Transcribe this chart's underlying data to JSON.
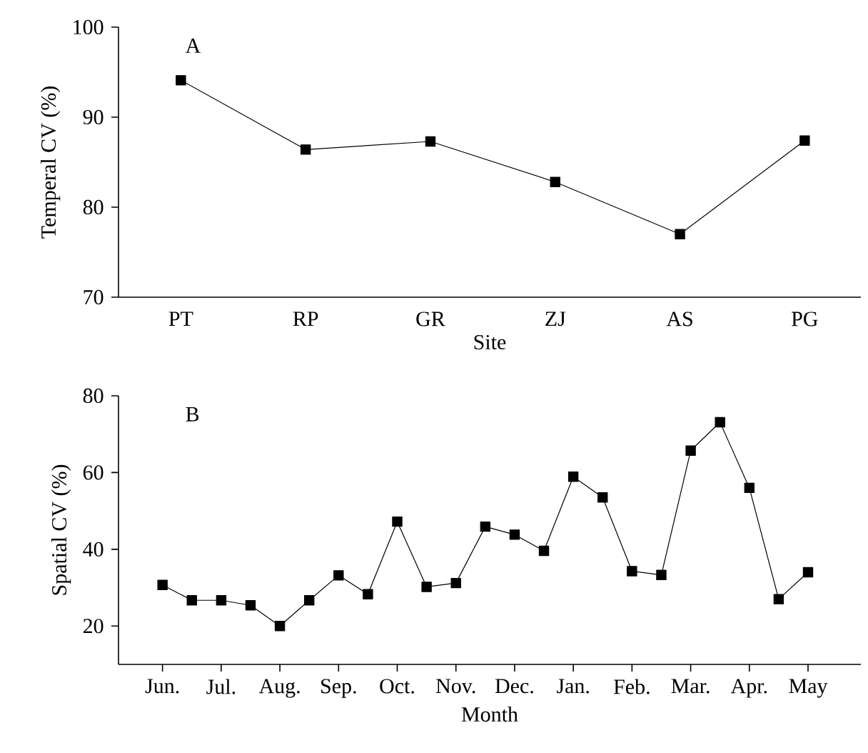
{
  "chart_data": [
    {
      "type": "line",
      "categories": [
        "PT",
        "RP",
        "GR",
        "ZJ",
        "AS",
        "PG"
      ],
      "xlabel": "Site",
      "ylabel": "Temperal CV (%)",
      "annotations": [
        "A"
      ],
      "color": "#000000",
      "marker": "square",
      "line_style": "solid",
      "grid": false,
      "ylim": [
        70,
        100
      ],
      "yticks": [
        70,
        80,
        90,
        100
      ],
      "values": [
        94.1,
        86.4,
        87.3,
        82.8,
        77.0,
        87.4
      ]
    },
    {
      "type": "line",
      "categories": [
        "Jun.",
        null,
        "Jul.",
        null,
        "Aug.",
        null,
        "Sep.",
        null,
        "Oct.",
        null,
        "Nov.",
        null,
        "Dec.",
        null,
        "Jan.",
        null,
        "Feb.",
        null,
        "Mar.",
        null,
        "Apr.",
        null,
        "May"
      ],
      "xlabel": "Month",
      "ylabel": "Spatial CV (%)",
      "annotations": [
        "B"
      ],
      "color": "#000000",
      "marker": "square",
      "line_style": "solid",
      "grid": false,
      "ylim": [
        10,
        80
      ],
      "yticks": [
        20,
        40,
        60,
        80
      ],
      "values": [
        30.7,
        26.7,
        26.7,
        25.4,
        20.0,
        26.7,
        33.2,
        28.3,
        47.2,
        30.2,
        31.2,
        45.9,
        43.8,
        39.6,
        58.9,
        53.5,
        34.3,
        33.3,
        65.7,
        73.1,
        56.0,
        27.0,
        34.0
      ]
    }
  ]
}
